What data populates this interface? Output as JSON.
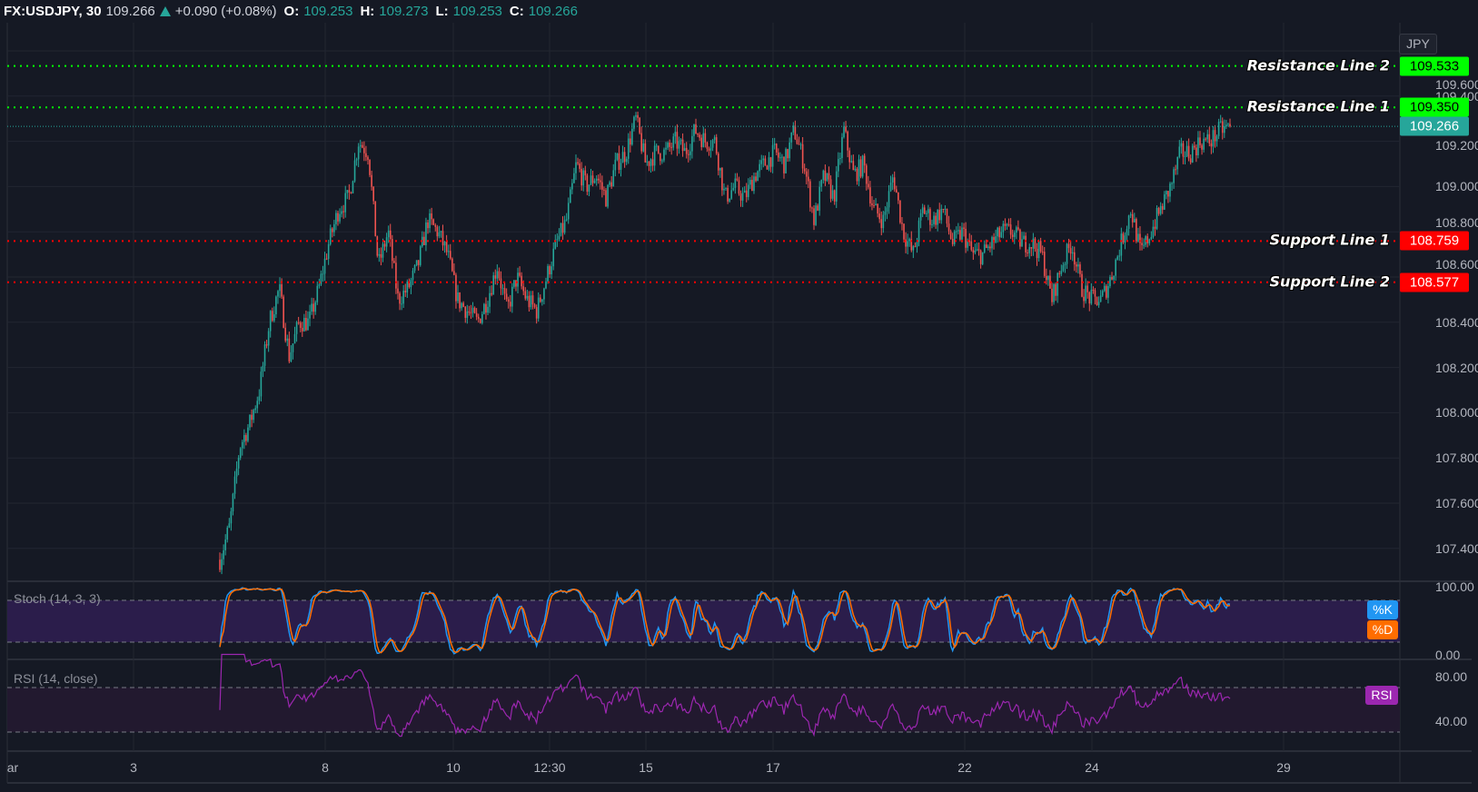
{
  "header": {
    "symbol": "FX:USDJPY, 30",
    "last": "109.266",
    "change": "+0.090 (+0.08%)",
    "open_label": "O:",
    "open": "109.253",
    "high_label": "H:",
    "high": "109.273",
    "low_label": "L:",
    "low": "109.253",
    "close_label": "C:",
    "close": "109.266",
    "direction_icon": "triangle-up-icon"
  },
  "price_axis": {
    "currency": "JPY",
    "ticks": [
      "109.600",
      "109.400",
      "109.200",
      "109.000",
      "108.800",
      "108.600",
      "108.400",
      "108.200",
      "108.000",
      "107.800",
      "107.600",
      "107.400"
    ],
    "current_price": "109.266"
  },
  "levels": [
    {
      "name": "Resistance Line 2",
      "value": "109.533",
      "color": "#00ff00"
    },
    {
      "name": "Resistance Line 1",
      "value": "109.350",
      "color": "#00ff00"
    },
    {
      "name": "Support Line 1",
      "value": "108.759",
      "color": "#ff0000"
    },
    {
      "name": "Support Line 2",
      "value": "108.577",
      "color": "#ff0000"
    }
  ],
  "time_axis": {
    "ticks": [
      "ar",
      "3",
      "8",
      "10",
      "12:30",
      "15",
      "17",
      "22",
      "24",
      "29"
    ]
  },
  "stoch": {
    "label": "Stoch (14, 3, 3)",
    "ticks": [
      "100.00",
      "0.00"
    ],
    "k_label": "%K",
    "d_label": "%D",
    "k_color": "#2196f3",
    "d_color": "#ff6d00",
    "bands": [
      80,
      20
    ]
  },
  "rsi": {
    "label": "RSI (14, close)",
    "ticks": [
      "80.00",
      "40.00"
    ],
    "badge": "RSI",
    "color": "#9c27b0",
    "bands": [
      70,
      30
    ]
  },
  "colors": {
    "up": "#26a69a",
    "down": "#ef5350",
    "background": "#151924"
  },
  "chart_data": {
    "type": "candlestick",
    "title": "FX:USDJPY, 30",
    "ylim": [
      107.35,
      109.65
    ],
    "x_ticks": [
      "ar",
      "3",
      "8",
      "10",
      "12:30",
      "15",
      "17",
      "22",
      "24",
      "29"
    ],
    "close_approx": [
      107.35,
      107.5,
      107.85,
      107.95,
      108.1,
      108.4,
      108.55,
      108.25,
      108.4,
      108.4,
      108.55,
      108.75,
      108.9,
      108.95,
      109.2,
      109.15,
      108.65,
      108.8,
      108.5,
      108.55,
      108.65,
      108.85,
      108.8,
      108.7,
      108.5,
      108.45,
      108.4,
      108.5,
      108.65,
      108.45,
      108.6,
      108.5,
      108.45,
      108.6,
      108.75,
      108.85,
      109.1,
      109.0,
      109.05,
      108.95,
      109.1,
      109.15,
      109.3,
      109.1,
      109.15,
      109.15,
      109.2,
      109.15,
      109.25,
      109.2,
      109.2,
      108.95,
      109.0,
      108.95,
      109.05,
      109.1,
      109.15,
      109.1,
      109.25,
      109.1,
      108.85,
      109.05,
      108.95,
      109.25,
      109.05,
      109.1,
      108.9,
      108.85,
      109.05,
      108.8,
      108.7,
      108.9,
      108.85,
      108.9,
      108.75,
      108.8,
      108.7,
      108.7,
      108.75,
      108.8,
      108.8,
      108.75,
      108.75,
      108.7,
      108.5,
      108.65,
      108.75,
      108.55,
      108.5,
      108.5,
      108.6,
      108.75,
      108.9,
      108.7,
      108.8,
      108.9,
      109.0,
      109.15,
      109.15,
      109.2,
      109.2,
      109.25,
      109.266
    ],
    "horizontal_lines": [
      109.533,
      109.35,
      108.759,
      108.577
    ],
    "last_price": 109.266
  }
}
